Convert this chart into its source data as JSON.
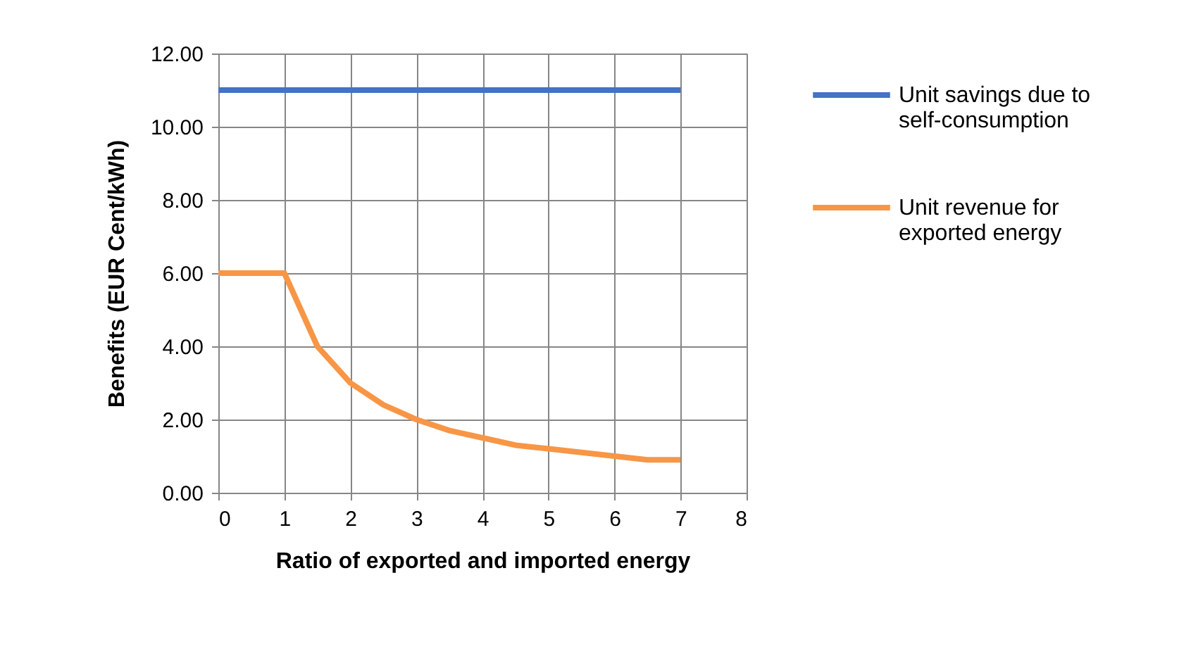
{
  "chart_data": {
    "type": "line",
    "xlabel": "Ratio of exported and imported energy",
    "ylabel": "Benefits (EUR Cent/kWh)",
    "x": [
      0,
      0.5,
      1,
      1.5,
      2,
      2.5,
      3,
      3.5,
      4,
      4.5,
      5,
      5.5,
      6,
      6.5,
      7
    ],
    "series": [
      {
        "name": "Unit savings due to self-consumption",
        "color": "#4472c4",
        "values": [
          11,
          11,
          11,
          11,
          11,
          11,
          11,
          11,
          11,
          11,
          11,
          11,
          11,
          11,
          11
        ]
      },
      {
        "name": "Unit revenue for exported energy",
        "color": "#f79646",
        "values": [
          6,
          6,
          6,
          4,
          3,
          2.4,
          2,
          1.7,
          1.5,
          1.3,
          1.2,
          1.1,
          1.0,
          0.9,
          0.9
        ]
      }
    ],
    "xlim": [
      0,
      8
    ],
    "xticks": [
      0,
      1,
      2,
      3,
      4,
      5,
      6,
      7,
      8
    ],
    "ylim": [
      0,
      12
    ],
    "yticks": [
      {
        "value": 0,
        "label": "0.00"
      },
      {
        "value": 2,
        "label": "2.00"
      },
      {
        "value": 4,
        "label": "4.00"
      },
      {
        "value": 6,
        "label": "6.00"
      },
      {
        "value": 8,
        "label": "8.00"
      },
      {
        "value": 10,
        "label": "10.00"
      },
      {
        "value": 12,
        "label": "12.00"
      }
    ],
    "grid": true,
    "legend": "right",
    "marker": "none",
    "line_style": "solid"
  }
}
